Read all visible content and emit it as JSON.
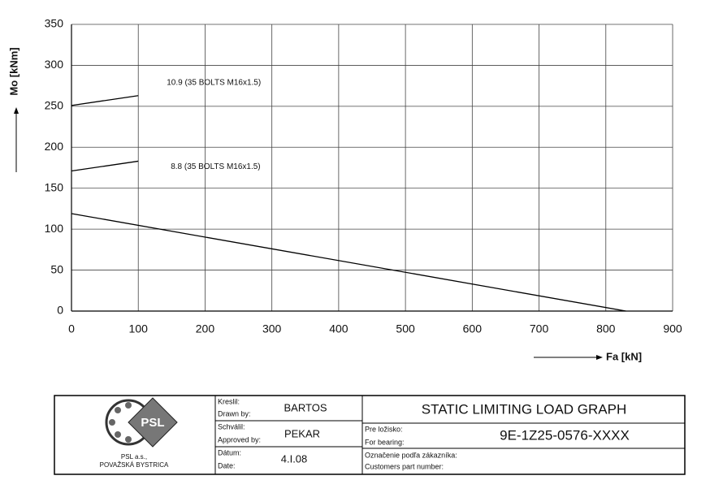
{
  "chart_data": {
    "type": "line",
    "x_label": "Fa [kN]",
    "y_label": "Mo [kNm]",
    "series": [
      {
        "name": "10.9 (35 BOLTS M16x1.5)",
        "color": "#000000",
        "x": [
          0,
          100
        ],
        "values": [
          251,
          263
        ]
      },
      {
        "name": "8.8 (35 BOLTS M16x1.5)",
        "color": "#000000",
        "x": [
          0,
          100
        ],
        "values": [
          171,
          183
        ]
      },
      {
        "name": null,
        "color": "#000000",
        "x": [
          0,
          830
        ],
        "values": [
          119,
          0
        ]
      }
    ],
    "xlim": [
      0,
      900
    ],
    "xticks": [
      0,
      100,
      200,
      300,
      400,
      500,
      600,
      700,
      800,
      900
    ],
    "ylim": [
      0,
      350
    ],
    "yticks": [
      0,
      50,
      100,
      150,
      200,
      250,
      300,
      350
    ],
    "grid": true
  },
  "title_block": {
    "logo": {
      "text": "PSL",
      "company": "PSL a.s.,",
      "city": "POVAŽSKÁ BYSTRICA"
    },
    "drawn": {
      "label_sk": "Kreslil:",
      "label_en": "Drawn by:",
      "value": "BARTOS"
    },
    "approved": {
      "label_sk": "Schválil:",
      "label_en": "Approved by:",
      "value": "PEKAR"
    },
    "date": {
      "label_sk": "Dátum:",
      "label_en": "Date:",
      "value": "4.I.08"
    },
    "title": "STATIC LIMITING LOAD GRAPH",
    "bearing": {
      "label_sk": "Pre ložisko:",
      "label_en": "For bearing:",
      "value": "9E-1Z25-0576-XXXX"
    },
    "customer": {
      "label_sk": "Označenie podľa zákazníka:",
      "label_en": "Customers part number:"
    }
  }
}
